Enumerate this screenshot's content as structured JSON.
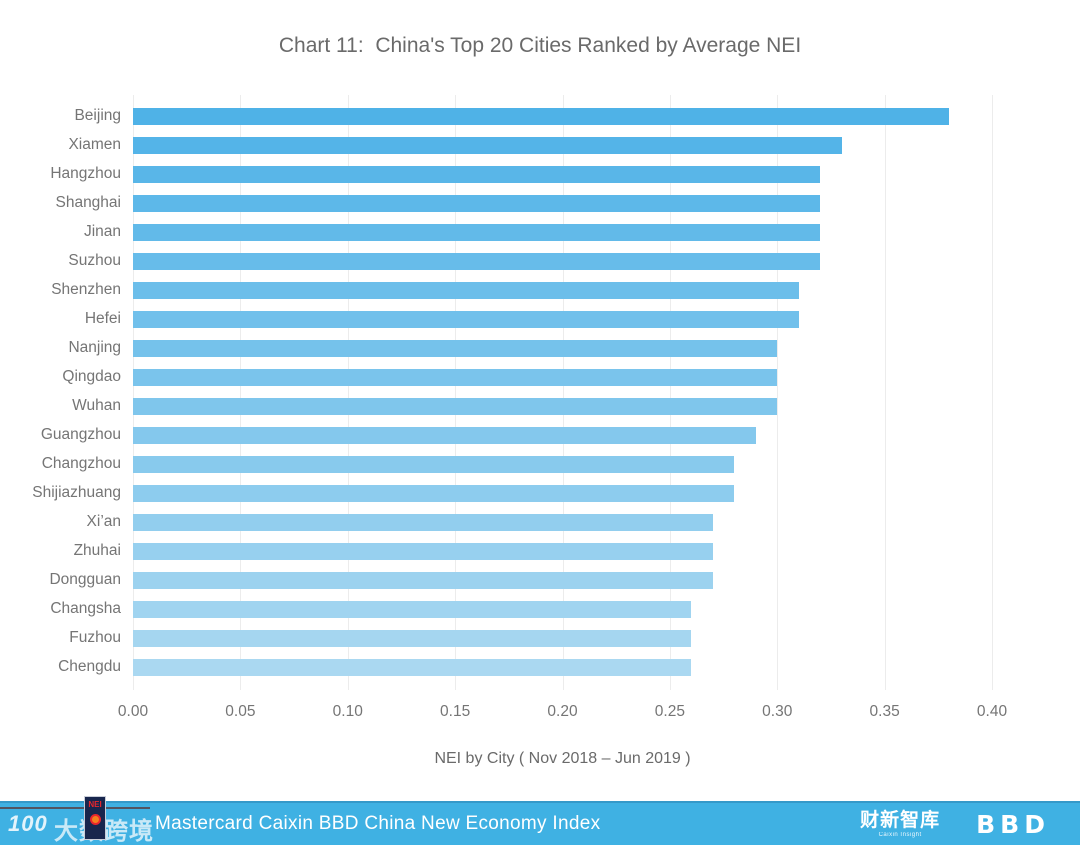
{
  "title": "Chart 11:  China's Top 20 Cities Ranked by Average NEI",
  "chart_data": {
    "type": "bar",
    "orientation": "horizontal",
    "title": "Chart 11:  China's Top 20 Cities Ranked by Average NEI",
    "xlabel": "NEI by City ( Nov 2018 – Jun 2019 )",
    "ylabel": "",
    "categories": [
      "Beijing",
      "Xiamen",
      "Hangzhou",
      "Shanghai",
      "Jinan",
      "Suzhou",
      "Shenzhen",
      "Hefei",
      "Nanjing",
      "Qingdao",
      "Wuhan",
      "Guangzhou",
      "Changzhou",
      "Shijiazhuang",
      "Xi’an",
      "Zhuhai",
      "Dongguan",
      "Changsha",
      "Fuzhou",
      "Chengdu"
    ],
    "values": [
      0.38,
      0.33,
      0.32,
      0.32,
      0.32,
      0.32,
      0.31,
      0.31,
      0.3,
      0.3,
      0.3,
      0.29,
      0.28,
      0.28,
      0.27,
      0.27,
      0.27,
      0.26,
      0.26,
      0.26
    ],
    "xlim": [
      0,
      0.4
    ],
    "xtick_labels": [
      "0.00",
      "0.05",
      "0.10",
      "0.15",
      "0.20",
      "0.25",
      "0.30",
      "0.35",
      "0.40"
    ],
    "grid": "vertical",
    "legend": "none",
    "colors": {
      "bar_top": "#4FB2E7",
      "bar_bottom": "#AAD8F1",
      "gridline": "#ececec",
      "label_text": "#757575",
      "title_text": "#6a6a6a"
    }
  },
  "footer": {
    "text": "Mastercard Caixin BBD China New Economy Index",
    "bg_color": "#3FB1E3",
    "text_color": "#ffffff",
    "watermark": {
      "logo_text": "100",
      "brand_text": "大数跨境",
      "badge_top_text": "NEI"
    },
    "caixin_logo": "财新智库",
    "caixin_sub": "Caixin Insight",
    "bbd_logo": "BBD"
  }
}
